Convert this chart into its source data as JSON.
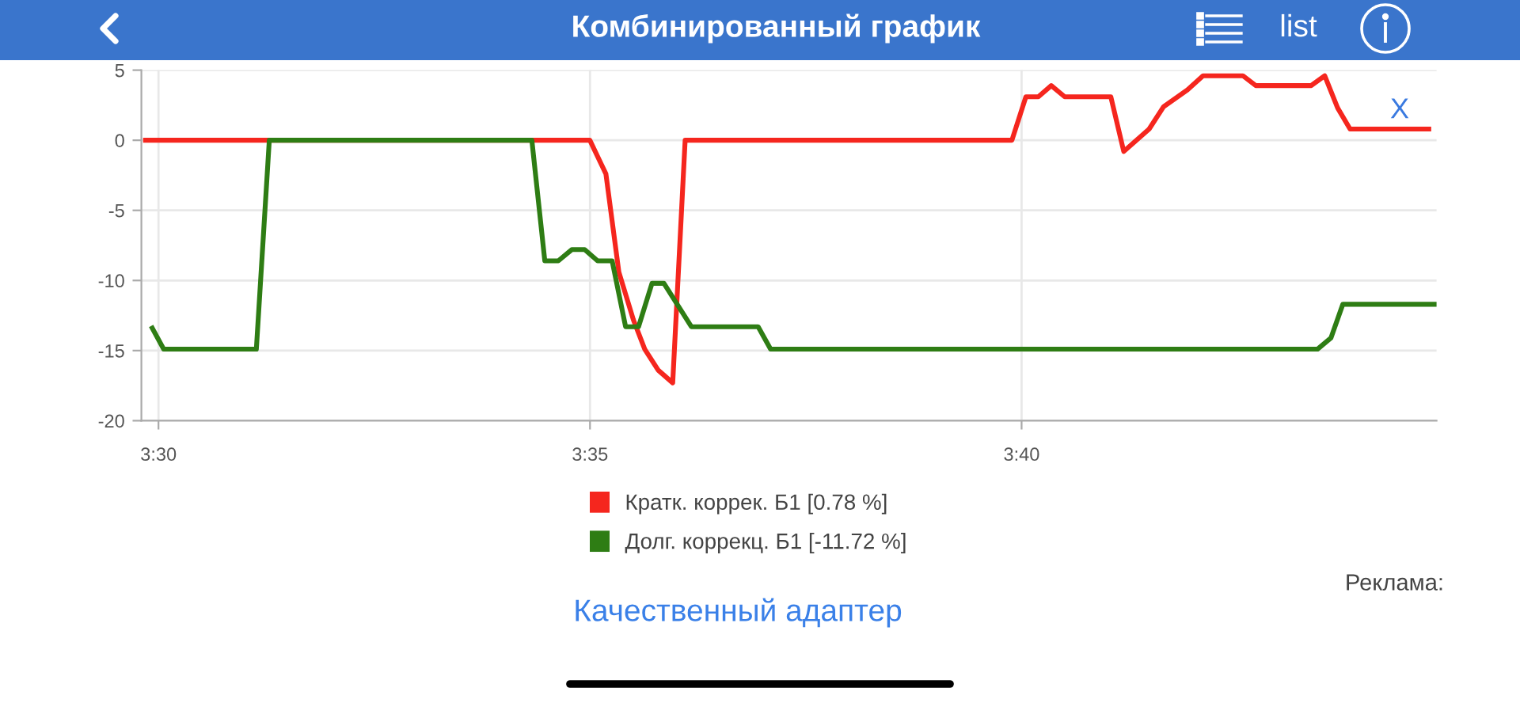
{
  "chart_data": {
    "type": "line",
    "title": "Комбинированный график",
    "series": [
      {
        "name": "Кратк. коррек. Б1 [0.78 %]",
        "color": "#f5261e",
        "x": [
          3.4975,
          3.5833,
          3.5864,
          3.5889,
          3.5917,
          3.5939,
          3.5965,
          3.5993,
          3.6017,
          3.6648,
          3.6675,
          3.6699,
          3.6724,
          3.675,
          3.6839,
          3.6864,
          3.6913,
          3.6941,
          3.6987,
          3.7017,
          3.7094,
          3.7119,
          3.7226,
          3.7252,
          3.7277,
          3.7301,
          3.7453
        ],
        "values": [
          0,
          0,
          -2.4,
          -9.4,
          -12.8,
          -14.9,
          -16.4,
          -17.3,
          0,
          0,
          3.1,
          3.1,
          3.9,
          3.1,
          3.1,
          -0.8,
          0.8,
          2.4,
          3.6,
          4.6,
          4.6,
          3.9,
          3.9,
          4.6,
          2.3,
          0.8,
          0.8
        ]
      },
      {
        "name": "Долг. коррекц. Б1 [-11.72 %]",
        "color": "#2e7d14",
        "x": [
          3.4988,
          3.501,
          3.5189,
          3.5214,
          3.5721,
          3.5746,
          3.5772,
          3.5798,
          3.5823,
          3.5848,
          3.5876,
          3.5902,
          3.5927,
          3.5953,
          3.5976,
          3.6029,
          3.6158,
          3.6182,
          3.7238,
          3.7264,
          3.7287,
          3.7468
        ],
        "values": [
          -13.4,
          -14.9,
          -14.9,
          0,
          0,
          -8.6,
          -8.6,
          -7.8,
          -7.8,
          -8.6,
          -8.6,
          -13.3,
          -13.3,
          -10.2,
          -10.2,
          -13.3,
          -13.3,
          -14.9,
          -14.9,
          -14.1,
          -11.7,
          -11.7
        ]
      }
    ],
    "xlim": [
      3.4967,
      3.7468
    ],
    "xticks": [
      {
        "value": 3.5,
        "label": "3:30"
      },
      {
        "value": 3.58333,
        "label": "3:35"
      },
      {
        "value": 3.66667,
        "label": "3:40"
      }
    ],
    "ylim": [
      -20,
      5
    ],
    "yticks": [
      -20,
      -15,
      -10,
      -5,
      0,
      5
    ],
    "grid": true,
    "legend": "bottom",
    "line_style": "solid",
    "annotations": [
      "list",
      "X",
      "Реклама:",
      "Качественный адаптер"
    ]
  }
}
